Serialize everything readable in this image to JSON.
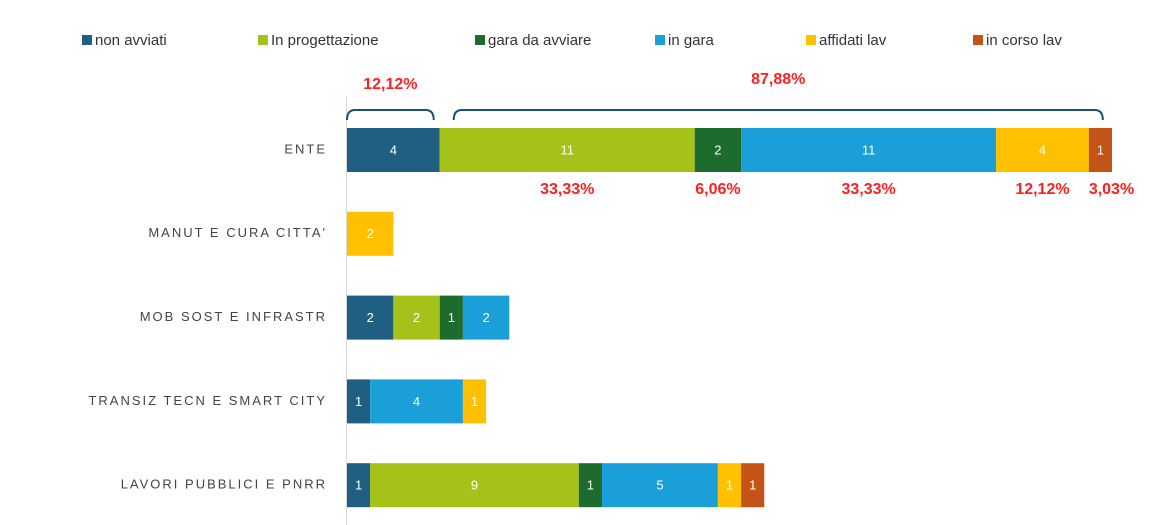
{
  "chart_data": {
    "type": "stacked-bar-horizontal",
    "categories": [
      "ENTE",
      "MANUT E CURA CITTA'",
      "MOB SOST E INFRASTR",
      "TRANSIZ TECN E SMART CITY",
      "LAVORI PUBBLICI E PNRR"
    ],
    "series": [
      {
        "name": "non avviati",
        "color": "#1f5f82",
        "values": [
          4,
          null,
          2,
          1,
          1
        ]
      },
      {
        "name": "In progettazione",
        "color": "#a5c21a",
        "values": [
          11,
          null,
          2,
          null,
          9
        ],
        "share_label": "33,33%"
      },
      {
        "name": "gara da avviare",
        "color": "#1e6b2e",
        "values": [
          2,
          null,
          1,
          null,
          1
        ],
        "share_label": "6,06%"
      },
      {
        "name": "in gara",
        "color": "#1b9fd8",
        "values": [
          11,
          null,
          2,
          4,
          5
        ],
        "share_label": "33,33%"
      },
      {
        "name": "affidati lav",
        "color": "#ffc000",
        "values": [
          4,
          2,
          null,
          1,
          1
        ],
        "share_label": "12,12%"
      },
      {
        "name": "in corso lav",
        "color": "#c45318",
        "values": [
          1,
          null,
          null,
          null,
          1
        ],
        "share_label": "3,03%"
      }
    ],
    "bracket_labels": [
      "12,12%",
      "87,88%"
    ],
    "legend": "top"
  }
}
